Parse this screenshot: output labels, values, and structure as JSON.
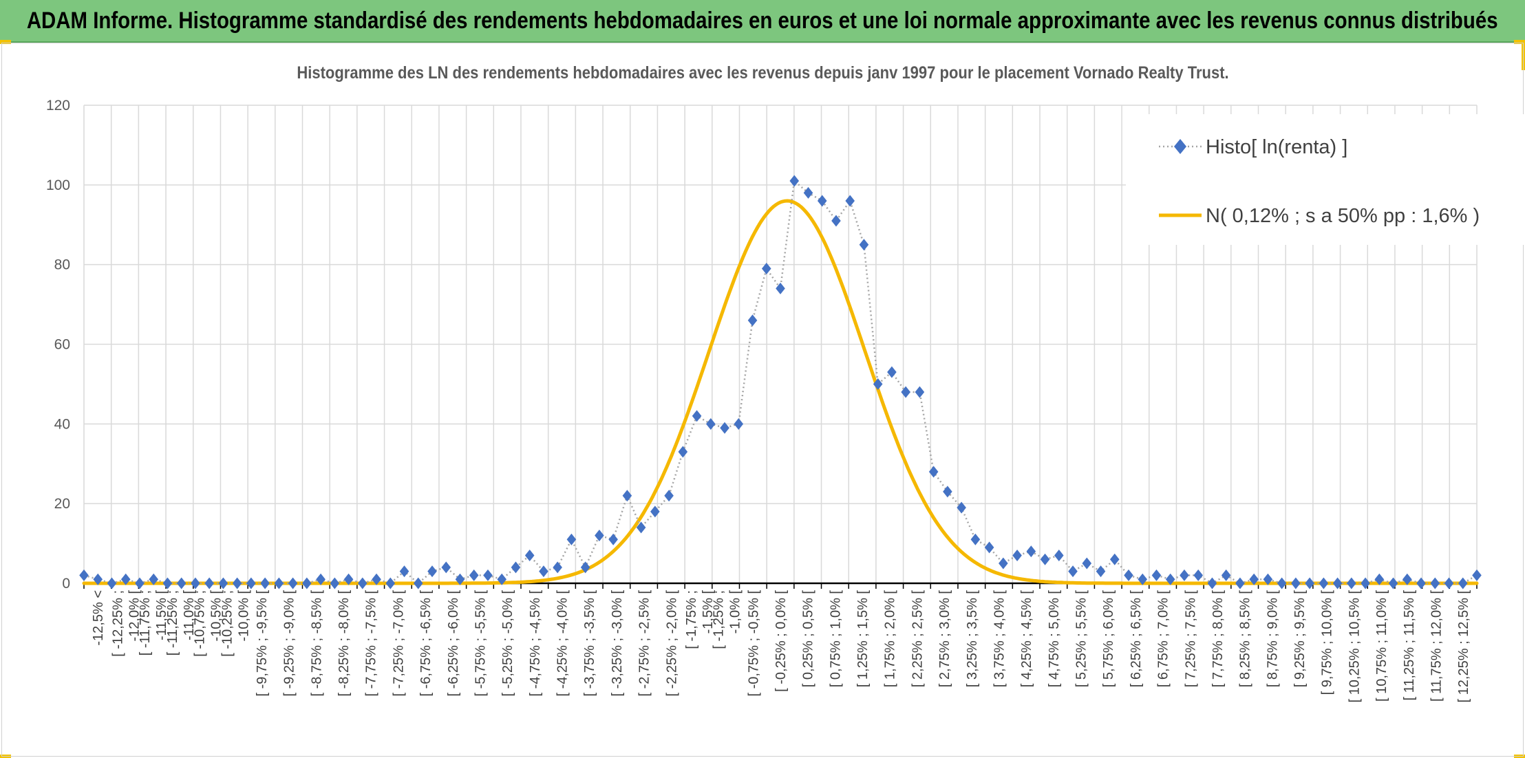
{
  "header": {
    "title": "ADAM Informe. Histogramme standardisé des rendements hebdomadaires en euros et une loi normale approximante avec les revenus connus distribués"
  },
  "colors": {
    "banner": "#7dc67e",
    "accent_corners": "#f2c200",
    "histogram": "#4472c4",
    "histogram_line": "#a5a5a5",
    "normal_curve": "#f5b800"
  },
  "chart_data": {
    "type": "line",
    "title": "Histogramme des LN des rendements hebdomadaires avec les revenus depuis janv 1997 pour le placement Vornado Realty Trust.",
    "xlabel": "",
    "ylabel": "",
    "ylim": [
      0,
      120
    ],
    "yticks": [
      0,
      20,
      40,
      60,
      80,
      100,
      120
    ],
    "grid": true,
    "legend_position": "top-right",
    "categories": [
      "-12,5% <",
      "[ -12,25% ; -12,0% [",
      "[ -11,75% ; -11,5% [",
      "[ -11,25% ; -11,0% [",
      "[ -10,75% ; -10,5% [",
      "[ -10,25% ; -10,0% [",
      "[ -9,75% ; -9,5% [",
      "[ -9,25% ; -9,0% [",
      "[ -8,75% ; -8,5% [",
      "[ -8,25% ; -8,0% [",
      "[ -7,75% ; -7,5% [",
      "[ -7,25% ; -7,0% [",
      "[ -6,75% ; -6,5% [",
      "[ -6,25% ; -6,0% [",
      "[ -5,75% ; -5,5% [",
      "[ -5,25% ; -5,0% [",
      "[ -4,75% ; -4,5% [",
      "[ -4,25% ; -4,0% [",
      "[ -3,75% ; -3,5% [",
      "[ -3,25% ; -3,0% [",
      "[ -2,75% ; -2,5% [",
      "[ -2,25% ; -2,0% [",
      "[ -1,75% ; -1,5% [",
      "[ -1,25% ; -1,0% [",
      "[ -0,75% ; -0,5% [",
      "[ -0,25% ; 0,0% [",
      "[ 0,25% ; 0,5% [",
      "[ 0,75% ; 1,0% [",
      "[ 1,25% ; 1,5% [",
      "[ 1,75% ; 2,0% [",
      "[ 2,25% ; 2,5% [",
      "[ 2,75% ; 3,0% [",
      "[ 3,25% ; 3,5% [",
      "[ 3,75% ; 4,0% [",
      "[ 4,25% ; 4,5% [",
      "[ 4,75% ; 5,0% [",
      "[ 5,25% ; 5,5% [",
      "[ 5,75% ; 6,0% [",
      "[ 6,25% ; 6,5% [",
      "[ 6,75% ; 7,0% [",
      "[ 7,25% ; 7,5% [",
      "[ 7,75% ; 8,0% [",
      "[ 8,25% ; 8,5% [",
      "[ 8,75% ; 9,0% [",
      "[ 9,25% ; 9,5% [",
      "[ 9,75% ; 10,0% [",
      "[ 10,25% ; 10,5% [",
      "[ 10,75% ; 11,0% [",
      "[ 11,25% ; 11,5% [",
      "[ 11,75% ; 12,0% [",
      "[ 12,25% ; 12,5% ["
    ],
    "series": [
      {
        "name": "Histo[ ln(renta) ]",
        "style": "dotted line with diamond markers",
        "x": [
          -12.5,
          -12.25,
          -12.0,
          -11.75,
          -11.5,
          -11.25,
          -11.0,
          -10.75,
          -10.5,
          -10.25,
          -10.0,
          -9.75,
          -9.5,
          -9.25,
          -9.0,
          -8.75,
          -8.5,
          -8.25,
          -8.0,
          -7.75,
          -7.5,
          -7.25,
          -7.0,
          -6.75,
          -6.5,
          -6.25,
          -6.0,
          -5.75,
          -5.5,
          -5.25,
          -5.0,
          -4.75,
          -4.5,
          -4.25,
          -4.0,
          -3.75,
          -3.5,
          -3.25,
          -3.0,
          -2.75,
          -2.5,
          -2.25,
          -2.0,
          -1.75,
          -1.5,
          -1.25,
          -1.0,
          -0.75,
          -0.5,
          -0.25,
          0.0,
          0.25,
          0.5,
          0.75,
          1.0,
          1.25,
          1.5,
          1.75,
          2.0,
          2.25,
          2.5,
          2.75,
          3.0,
          3.25,
          3.5,
          3.75,
          4.0,
          4.25,
          4.5,
          4.75,
          5.0,
          5.25,
          5.5,
          5.75,
          6.0,
          6.25,
          6.5,
          6.75,
          7.0,
          7.25,
          7.5,
          7.75,
          8.0,
          8.25,
          8.5,
          8.75,
          9.0,
          9.25,
          9.5,
          9.75,
          10.0,
          10.25,
          10.5,
          10.75,
          11.0,
          11.25,
          11.5,
          11.75,
          12.0,
          12.25,
          12.5
        ],
        "values": [
          2,
          1,
          0,
          1,
          0,
          1,
          0,
          0,
          0,
          0,
          0,
          0,
          0,
          0,
          0,
          0,
          0,
          1,
          0,
          1,
          0,
          1,
          0,
          3,
          0,
          3,
          4,
          1,
          2,
          2,
          1,
          4,
          7,
          3,
          4,
          11,
          4,
          12,
          11,
          22,
          14,
          18,
          22,
          33,
          42,
          40,
          39,
          40,
          66,
          79,
          74,
          101,
          98,
          96,
          91,
          96,
          85,
          50,
          53,
          48,
          48,
          28,
          23,
          19,
          11,
          9,
          5,
          7,
          8,
          6,
          7,
          3,
          5,
          3,
          6,
          2,
          1,
          2,
          1,
          2,
          2,
          0,
          2,
          0,
          1,
          1,
          0,
          0,
          0,
          0,
          0,
          0,
          0,
          1,
          0,
          1,
          0,
          0,
          0,
          0,
          2
        ]
      },
      {
        "name": "N( 0,12% ; s a 50% pp : 1,6% )",
        "style": "smooth line",
        "mean": 0.12,
        "sigma": 1.4,
        "peak": 96
      }
    ]
  }
}
